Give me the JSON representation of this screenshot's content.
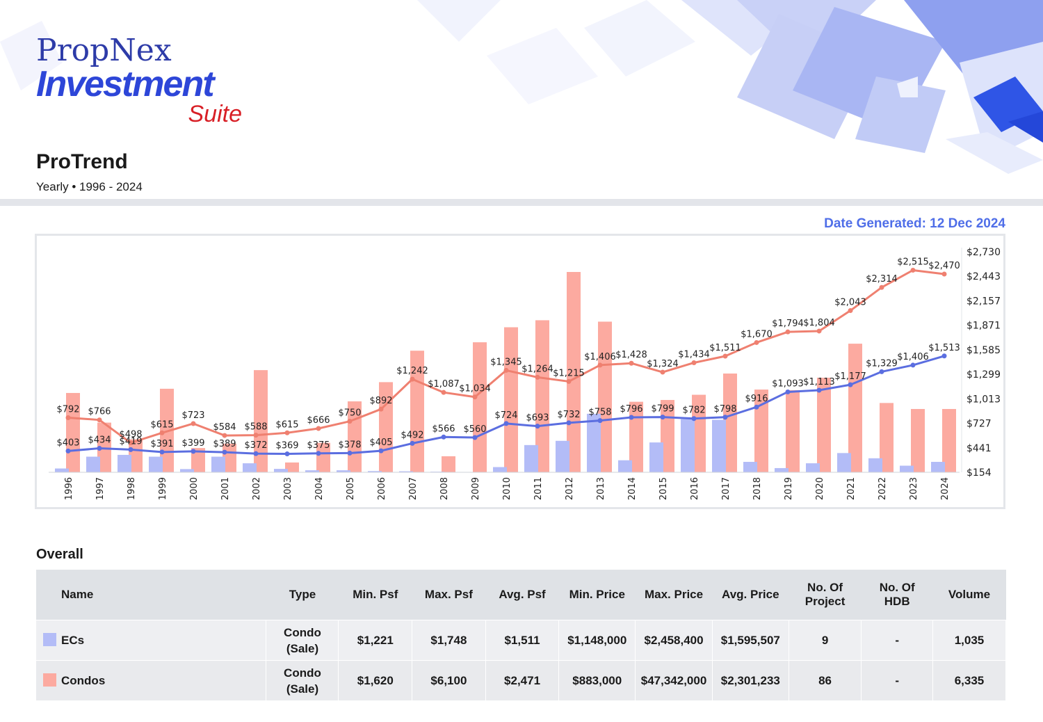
{
  "logo": {
    "line1": "PropNex",
    "line2": "Investment",
    "line3": "Suite"
  },
  "header": {
    "title": "ProTrend",
    "subtitle": "Yearly • 1996 - 2024",
    "date_generated": "Date Generated: 12 Dec 2024"
  },
  "colors": {
    "ec": "#5b6ee0",
    "condo": "#ef8070",
    "ec_bar": "#b3bcf7",
    "condo_bar": "#fcaaa0"
  },
  "chart_data": {
    "type": "bar+line",
    "categories": [
      "1996",
      "1997",
      "1998",
      "1999",
      "2000",
      "2001",
      "2002",
      "2003",
      "2004",
      "2005",
      "2006",
      "2007",
      "2008",
      "2009",
      "2010",
      "2011",
      "2012",
      "2013",
      "2014",
      "2015",
      "2016",
      "2017",
      "2018",
      "2019",
      "2020",
      "2021",
      "2022",
      "2023",
      "2024"
    ],
    "y_ticks": [
      "$2,730",
      "$2,443",
      "$2,157",
      "$1,871",
      "$1,585",
      "$1,299",
      "$1,013",
      "$727",
      "$441",
      "$154"
    ],
    "ylim": [
      154,
      2730
    ],
    "series": [
      {
        "name": "ECs",
        "kind": "line",
        "values": [
          403,
          434,
          419,
          391,
          399,
          389,
          372,
          369,
          375,
          378,
          405,
          492,
          566,
          560,
          724,
          693,
          732,
          758,
          796,
          799,
          782,
          798,
          916,
          1093,
          1113,
          1177,
          1329,
          1406,
          1513
        ],
        "labels": [
          "$403",
          "$434",
          "$419",
          "$391",
          "$399",
          "$389",
          "$372",
          "$369",
          "$375",
          "$378",
          "$405",
          "$492",
          "$566",
          "$560",
          "$724",
          "$693",
          "$732",
          "$758",
          "$796",
          "$799",
          "$782",
          "$798",
          "$916",
          "$1,093",
          "$1,113",
          "$1,177",
          "$1,329",
          "$1,406",
          "$1,513"
        ]
      },
      {
        "name": "Condos",
        "kind": "line",
        "values": [
          792,
          766,
          498,
          615,
          723,
          584,
          588,
          615,
          666,
          750,
          892,
          1242,
          1087,
          1034,
          1345,
          1264,
          1215,
          1406,
          1428,
          1324,
          1434,
          1511,
          1670,
          1794,
          1804,
          2043,
          2314,
          2515,
          2470
        ],
        "labels": [
          "$792",
          "$766",
          "$498",
          "$615",
          "$723",
          "$584",
          "$588",
          "$615",
          "$666",
          "$750",
          "$892",
          "$1,242",
          "$1,087",
          "$1,034",
          "$1,345",
          "$1,264",
          "$1,215",
          "$1,406",
          "$1,428",
          "$1,324",
          "$1,434",
          "$1,511",
          "$1,670",
          "$1,794",
          "$1,804",
          "$2,043",
          "$2,314",
          "$2,515",
          "$2,470"
        ]
      },
      {
        "name": "ECs",
        "kind": "bar",
        "scale": "relative",
        "values": [
          0.019,
          0.078,
          0.087,
          0.078,
          0.016,
          0.078,
          0.045,
          0.017,
          0.01,
          0.01,
          0.006,
          0.005,
          0.003,
          0,
          0.026,
          0.136,
          0.157,
          0.292,
          0.06,
          0.149,
          0.265,
          0.262,
          0.052,
          0.021,
          0.045,
          0.096,
          0.07,
          0.033,
          0.052
        ]
      },
      {
        "name": "Condos",
        "kind": "bar",
        "scale": "relative",
        "values": [
          0.396,
          0.248,
          0.165,
          0.417,
          0.121,
          0.143,
          0.51,
          0.049,
          0.147,
          0.354,
          0.45,
          0.607,
          0.08,
          0.649,
          0.724,
          0.759,
          1.0,
          0.752,
          0.352,
          0.361,
          0.387,
          0.493,
          0.413,
          0.41,
          0.472,
          0.642,
          0.346,
          0.316,
          0.316
        ]
      }
    ]
  },
  "table": {
    "section_title": "Overall",
    "headers": [
      "Name",
      "Type",
      "Min. Psf",
      "Max. Psf",
      "Avg. Psf",
      "Min. Price",
      "Max. Price",
      "Avg. Price",
      "No. Of\nProject",
      "No. Of\nHDB",
      "Volume"
    ],
    "rows": [
      {
        "name": "ECs",
        "type": "Condo\n(Sale)",
        "min_psf": "$1,221",
        "max_psf": "$1,748",
        "avg_psf": "$1,511",
        "min_price": "$1,148,000",
        "max_price": "$2,458,400",
        "avg_price": "$1,595,507",
        "projects": "9",
        "hdb": "-",
        "volume": "1,035"
      },
      {
        "name": "Condos",
        "type": "Condo\n(Sale)",
        "min_psf": "$1,620",
        "max_psf": "$6,100",
        "avg_psf": "$2,471",
        "min_price": "$883,000",
        "max_price": "$47,342,000",
        "avg_price": "$2,301,233",
        "projects": "86",
        "hdb": "-",
        "volume": "6,335"
      }
    ]
  }
}
